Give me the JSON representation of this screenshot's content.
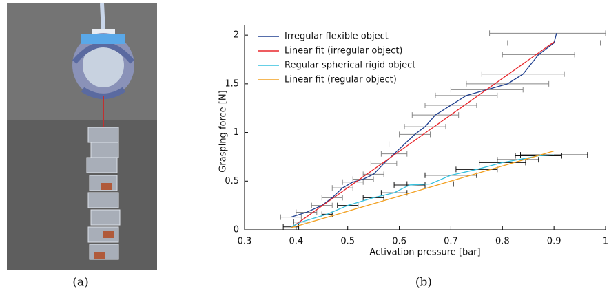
{
  "chart_data": {
    "type": "line",
    "xlabel": "Activation pressure [bar]",
    "ylabel": "Grasping force [N]",
    "xlim": [
      0.3,
      1
    ],
    "xticks": [
      0.3,
      0.4,
      0.5,
      0.6,
      0.7,
      0.8,
      0.9,
      1
    ],
    "ylim": [
      0,
      2.1
    ],
    "yticks": [
      0,
      0.5,
      1,
      1.5,
      2
    ],
    "legend": "upper left",
    "series": [
      {
        "name": "Irregular flexible object",
        "color": "#1f3f8f",
        "x": [
          0.39,
          0.42,
          0.45,
          0.47,
          0.49,
          0.51,
          0.53,
          0.55,
          0.57,
          0.59,
          0.61,
          0.63,
          0.65,
          0.67,
          0.7,
          0.73,
          0.77,
          0.81,
          0.84,
          0.87,
          0.9,
          0.905
        ],
        "values": [
          0.13,
          0.18,
          0.25,
          0.33,
          0.43,
          0.49,
          0.52,
          0.57,
          0.68,
          0.78,
          0.88,
          0.98,
          1.06,
          1.18,
          1.28,
          1.38,
          1.44,
          1.5,
          1.6,
          1.8,
          1.92,
          2.02
        ],
        "xerr": [
          0.02,
          0.02,
          0.02,
          0.02,
          0.02,
          0.02,
          0.02,
          0.02,
          0.025,
          0.025,
          0.03,
          0.03,
          0.04,
          0.045,
          0.05,
          0.06,
          0.07,
          0.08,
          0.08,
          0.07,
          0.09,
          0.13
        ],
        "errcolor": "#888888"
      },
      {
        "name": "Linear fit (irregular  object)",
        "color": "#e8262b",
        "x": [
          0.39,
          0.9
        ],
        "values": [
          0.02,
          1.93
        ]
      },
      {
        "name": "Regular spherical rigid object",
        "color": "#35c0dd",
        "x": [
          0.39,
          0.41,
          0.46,
          0.5,
          0.55,
          0.59,
          0.62,
          0.66,
          0.7,
          0.75,
          0.8,
          0.83,
          0.87,
          0.9
        ],
        "values": [
          0.03,
          0.08,
          0.16,
          0.25,
          0.33,
          0.38,
          0.46,
          0.47,
          0.56,
          0.62,
          0.69,
          0.72,
          0.76,
          0.77
        ],
        "xerr": [
          0.015,
          0.015,
          0.01,
          0.02,
          0.02,
          0.025,
          0.03,
          0.045,
          0.05,
          0.04,
          0.045,
          0.04,
          0.045,
          0.065
        ],
        "errcolor": "#111111"
      },
      {
        "name": "Linear fit (regular object)",
        "color": "#f2a020",
        "x": [
          0.39,
          0.9
        ],
        "values": [
          0.02,
          0.81
        ]
      }
    ]
  },
  "captions": [
    "(a)",
    "(b)"
  ]
}
